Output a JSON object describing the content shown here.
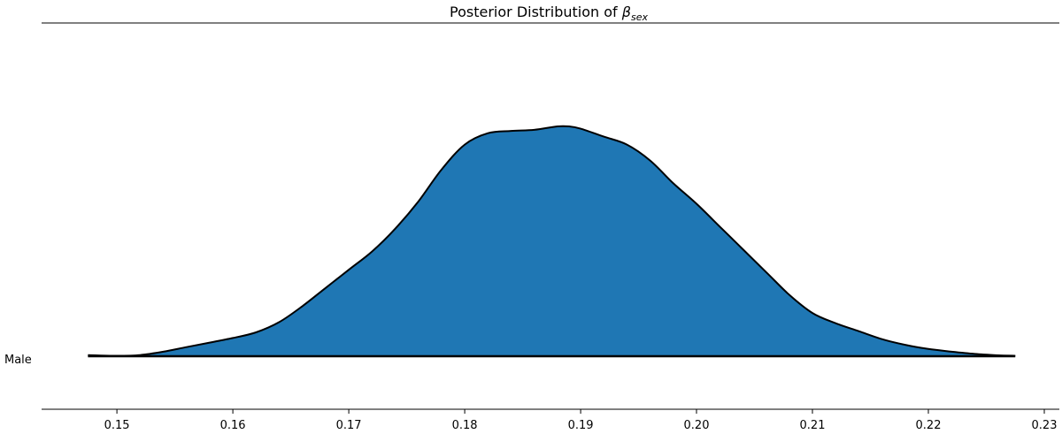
{
  "chart_data": {
    "type": "area",
    "title": {
      "main": "Posterior Distribution of ",
      "symbol": "β",
      "subscript": "sex"
    },
    "category_label": "Male",
    "xlabel": "",
    "ylabel": "",
    "xlim": [
      0.1435,
      0.2313
    ],
    "ylim": [
      0,
      1.13
    ],
    "grid": false,
    "legend": "none",
    "xticks": [
      {
        "value": 0.15,
        "label": "0.15"
      },
      {
        "value": 0.16,
        "label": "0.16"
      },
      {
        "value": 0.17,
        "label": "0.17"
      },
      {
        "value": 0.18,
        "label": "0.18"
      },
      {
        "value": 0.19,
        "label": "0.19"
      },
      {
        "value": 0.2,
        "label": "0.20"
      },
      {
        "value": 0.21,
        "label": "0.21"
      },
      {
        "value": 0.22,
        "label": "0.22"
      },
      {
        "value": 0.23,
        "label": "0.23"
      }
    ],
    "series": [
      {
        "name": "Male",
        "color": "#1f77b4",
        "edge_color": "#000000",
        "x": [
          0.1475,
          0.15,
          0.152,
          0.154,
          0.156,
          0.158,
          0.16,
          0.162,
          0.164,
          0.166,
          0.168,
          0.17,
          0.172,
          0.174,
          0.176,
          0.178,
          0.18,
          0.182,
          0.184,
          0.186,
          0.188,
          0.189,
          0.19,
          0.192,
          0.194,
          0.196,
          0.198,
          0.2,
          0.202,
          0.204,
          0.206,
          0.208,
          0.21,
          0.212,
          0.214,
          0.216,
          0.218,
          0.22,
          0.222,
          0.224,
          0.226,
          0.2275
        ],
        "y": [
          0.005,
          0.002,
          0.005,
          0.02,
          0.04,
          0.06,
          0.08,
          0.105,
          0.15,
          0.22,
          0.3,
          0.38,
          0.46,
          0.56,
          0.68,
          0.82,
          0.93,
          0.98,
          0.99,
          0.995,
          1.01,
          1.01,
          1.0,
          0.965,
          0.93,
          0.86,
          0.76,
          0.67,
          0.57,
          0.47,
          0.37,
          0.27,
          0.19,
          0.145,
          0.11,
          0.075,
          0.05,
          0.032,
          0.02,
          0.01,
          0.004,
          0.002
        ]
      }
    ]
  }
}
